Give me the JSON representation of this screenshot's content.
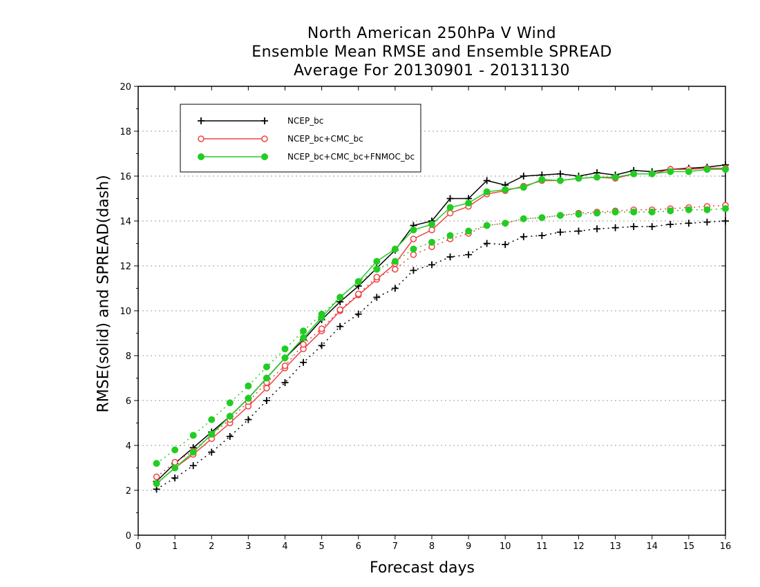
{
  "chart_data": {
    "type": "line",
    "title": [
      "North American 250hPa V Wind",
      "Ensemble Mean RMSE and Ensemble SPREAD",
      "Average For 20130901 - 20131130"
    ],
    "xlabel": "Forecast days",
    "ylabel": "RMSE(solid) and SPREAD(dash)",
    "xlim": [
      0,
      16
    ],
    "ylim": [
      0,
      20
    ],
    "x_ticks": [
      "0",
      "1",
      "2",
      "3",
      "4",
      "5",
      "6",
      "7",
      "8",
      "9",
      "10",
      "11",
      "12",
      "13",
      "14",
      "15",
      "16"
    ],
    "y_ticks": [
      "0",
      "2",
      "4",
      "6",
      "8",
      "10",
      "12",
      "14",
      "16",
      "18",
      "20"
    ],
    "grid": "horizontal dotted",
    "legend_position": "top-left",
    "x": [
      0.5,
      1,
      1.5,
      2,
      2.5,
      3,
      3.5,
      4,
      4.5,
      5,
      5.5,
      6,
      6.5,
      7,
      7.5,
      8,
      8.5,
      9,
      9.5,
      10,
      10.5,
      11,
      11.5,
      12,
      12.5,
      13,
      13.5,
      14,
      14.5,
      15,
      15.5,
      16
    ],
    "series": [
      {
        "name": "NCEP_bc",
        "color": "#000000",
        "marker": "plus",
        "rmse": [
          2.4,
          3.2,
          3.9,
          4.6,
          5.3,
          6.1,
          7.0,
          7.9,
          8.7,
          9.6,
          10.4,
          11.1,
          11.9,
          12.7,
          13.8,
          14.0,
          15.0,
          15.0,
          15.8,
          15.6,
          16.0,
          16.05,
          16.1,
          16.0,
          16.15,
          16.05,
          16.25,
          16.2,
          16.3,
          16.35,
          16.4,
          16.5
        ],
        "spread": [
          2.05,
          2.55,
          3.1,
          3.7,
          4.4,
          5.15,
          6.0,
          6.8,
          7.7,
          8.45,
          9.3,
          9.85,
          10.6,
          11.0,
          11.8,
          12.05,
          12.4,
          12.5,
          13.0,
          12.95,
          13.3,
          13.35,
          13.5,
          13.55,
          13.65,
          13.7,
          13.75,
          13.75,
          13.85,
          13.9,
          13.95,
          14.0
        ]
      },
      {
        "name": "NCEP_bc+CMC_bc",
        "color": "#ee4444",
        "marker": "open-circle",
        "rmse": [
          2.3,
          3.0,
          3.6,
          4.3,
          5.0,
          5.75,
          6.55,
          7.45,
          8.3,
          9.1,
          10.0,
          10.7,
          11.4,
          12.1,
          13.2,
          13.6,
          14.35,
          14.65,
          15.2,
          15.35,
          15.55,
          15.8,
          15.8,
          15.9,
          15.95,
          15.9,
          16.1,
          16.1,
          16.3,
          16.3,
          16.35,
          16.35
        ],
        "spread": [
          2.6,
          3.25,
          3.75,
          4.5,
          5.15,
          5.95,
          6.8,
          7.55,
          8.5,
          9.2,
          10.05,
          10.75,
          11.5,
          11.85,
          12.5,
          12.85,
          13.2,
          13.45,
          13.8,
          13.9,
          14.1,
          14.15,
          14.25,
          14.35,
          14.4,
          14.45,
          14.5,
          14.5,
          14.55,
          14.6,
          14.65,
          14.7
        ]
      },
      {
        "name": "NCEP_bc+CMC_bc+FNMOC_bc",
        "color": "#22cc22",
        "marker": "filled-circle",
        "rmse": [
          2.3,
          3.0,
          3.7,
          4.5,
          5.3,
          6.1,
          7.0,
          7.9,
          8.8,
          9.7,
          10.6,
          11.3,
          12.2,
          12.75,
          13.6,
          13.85,
          14.6,
          14.8,
          15.3,
          15.4,
          15.5,
          15.85,
          15.8,
          15.9,
          15.95,
          15.95,
          16.1,
          16.1,
          16.2,
          16.2,
          16.3,
          16.3
        ],
        "spread": [
          3.2,
          3.8,
          4.45,
          5.15,
          5.9,
          6.65,
          7.5,
          8.3,
          9.1,
          9.85,
          10.6,
          11.3,
          11.85,
          12.2,
          12.75,
          13.05,
          13.35,
          13.55,
          13.8,
          13.9,
          14.1,
          14.15,
          14.25,
          14.3,
          14.35,
          14.4,
          14.4,
          14.4,
          14.45,
          14.5,
          14.5,
          14.55
        ]
      }
    ]
  }
}
